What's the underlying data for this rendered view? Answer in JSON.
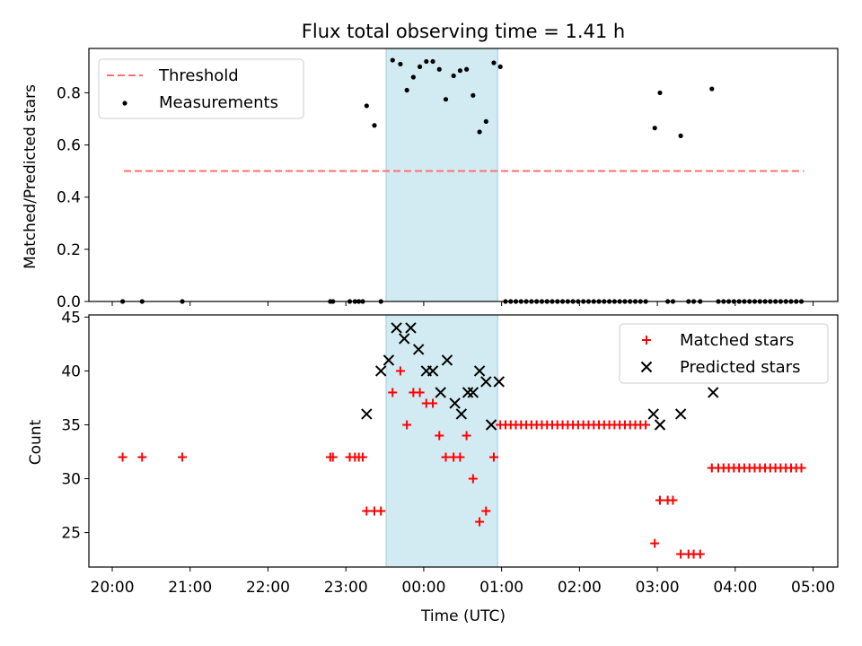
{
  "chart_data": [
    {
      "type": "scatter",
      "title": "Flux total observing time = 1.41 h",
      "xlabel": "",
      "ylabel": "Matched/Predicted stars",
      "xlim": [
        "19:42",
        "05:19"
      ],
      "ylim": [
        0,
        0.97
      ],
      "yticks": [
        0.0,
        0.2,
        0.4,
        0.6,
        0.8
      ],
      "ytick_labels": [
        "0.0",
        "0.2",
        "0.4",
        "0.6",
        "0.8"
      ],
      "shaded_interval": {
        "start": "23:31",
        "end": "00:57",
        "color": "#add8e6"
      },
      "legend": {
        "position": "top-left",
        "entries": [
          "Threshold",
          "Measurements"
        ]
      },
      "series": [
        {
          "name": "Threshold",
          "kind": "line",
          "color": "#ff6f6f",
          "style": "dashed",
          "points": [
            {
              "x": "20:09",
              "y": 0.5
            },
            {
              "x": "04:53",
              "y": 0.5
            }
          ]
        },
        {
          "name": "Measurements",
          "kind": "scatter",
          "color": "#000000",
          "points": [
            {
              "x": "20:08",
              "y": 0
            },
            {
              "x": "20:23",
              "y": 0
            },
            {
              "x": "20:54",
              "y": 0
            },
            {
              "x": "22:48",
              "y": 0
            },
            {
              "x": "22:50",
              "y": 0
            },
            {
              "x": "23:03",
              "y": 0
            },
            {
              "x": "23:07",
              "y": 0
            },
            {
              "x": "23:10",
              "y": 0
            },
            {
              "x": "23:13",
              "y": 0
            },
            {
              "x": "23:16",
              "y": 0.75
            },
            {
              "x": "23:22",
              "y": 0.675
            },
            {
              "x": "23:27",
              "y": 0
            },
            {
              "x": "23:36",
              "y": 0.925
            },
            {
              "x": "23:42",
              "y": 0.91
            },
            {
              "x": "23:47",
              "y": 0.81
            },
            {
              "x": "23:52",
              "y": 0.86
            },
            {
              "x": "23:57",
              "y": 0.9
            },
            {
              "x": "00:02",
              "y": 0.92
            },
            {
              "x": "00:07",
              "y": 0.92
            },
            {
              "x": "00:12",
              "y": 0.89
            },
            {
              "x": "00:17",
              "y": 0.775
            },
            {
              "x": "00:23",
              "y": 0.865
            },
            {
              "x": "00:28",
              "y": 0.885
            },
            {
              "x": "00:33",
              "y": 0.89
            },
            {
              "x": "00:38",
              "y": 0.79
            },
            {
              "x": "00:43",
              "y": 0.65
            },
            {
              "x": "00:48",
              "y": 0.69
            },
            {
              "x": "00:54",
              "y": 0.915
            },
            {
              "x": "00:59",
              "y": 0.9
            },
            {
              "x": "01:03",
              "y": 0
            },
            {
              "x": "01:07",
              "y": 0
            },
            {
              "x": "01:11",
              "y": 0
            },
            {
              "x": "01:15",
              "y": 0
            },
            {
              "x": "01:19",
              "y": 0
            },
            {
              "x": "01:23",
              "y": 0
            },
            {
              "x": "01:27",
              "y": 0
            },
            {
              "x": "01:31",
              "y": 0
            },
            {
              "x": "01:35",
              "y": 0
            },
            {
              "x": "01:39",
              "y": 0
            },
            {
              "x": "01:43",
              "y": 0
            },
            {
              "x": "01:47",
              "y": 0
            },
            {
              "x": "01:51",
              "y": 0
            },
            {
              "x": "01:55",
              "y": 0
            },
            {
              "x": "01:59",
              "y": 0
            },
            {
              "x": "02:03",
              "y": 0
            },
            {
              "x": "02:07",
              "y": 0
            },
            {
              "x": "02:11",
              "y": 0
            },
            {
              "x": "02:15",
              "y": 0
            },
            {
              "x": "02:19",
              "y": 0
            },
            {
              "x": "02:23",
              "y": 0
            },
            {
              "x": "02:27",
              "y": 0
            },
            {
              "x": "02:31",
              "y": 0
            },
            {
              "x": "02:35",
              "y": 0
            },
            {
              "x": "02:39",
              "y": 0
            },
            {
              "x": "02:43",
              "y": 0
            },
            {
              "x": "02:47",
              "y": 0
            },
            {
              "x": "02:51",
              "y": 0
            },
            {
              "x": "02:58",
              "y": 0.665
            },
            {
              "x": "03:02",
              "y": 0.8
            },
            {
              "x": "03:08",
              "y": 0
            },
            {
              "x": "03:12",
              "y": 0
            },
            {
              "x": "03:18",
              "y": 0.635
            },
            {
              "x": "03:24",
              "y": 0
            },
            {
              "x": "03:28",
              "y": 0
            },
            {
              "x": "03:33",
              "y": 0
            },
            {
              "x": "03:42",
              "y": 0.815
            },
            {
              "x": "03:47",
              "y": 0
            },
            {
              "x": "03:51",
              "y": 0
            },
            {
              "x": "03:55",
              "y": 0
            },
            {
              "x": "03:59",
              "y": 0
            },
            {
              "x": "04:03",
              "y": 0
            },
            {
              "x": "04:07",
              "y": 0
            },
            {
              "x": "04:11",
              "y": 0
            },
            {
              "x": "04:15",
              "y": 0
            },
            {
              "x": "04:19",
              "y": 0
            },
            {
              "x": "04:23",
              "y": 0
            },
            {
              "x": "04:27",
              "y": 0
            },
            {
              "x": "04:31",
              "y": 0
            },
            {
              "x": "04:35",
              "y": 0
            },
            {
              "x": "04:39",
              "y": 0
            },
            {
              "x": "04:43",
              "y": 0
            },
            {
              "x": "04:47",
              "y": 0
            },
            {
              "x": "04:51",
              "y": 0
            }
          ]
        }
      ]
    },
    {
      "type": "scatter",
      "title": "",
      "xlabel": "Time (UTC)",
      "ylabel": "Count",
      "xlim": [
        "19:42",
        "05:19"
      ],
      "ylim": [
        21.8,
        45.2
      ],
      "yticks": [
        25,
        30,
        35,
        40,
        45
      ],
      "ytick_labels": [
        "25",
        "30",
        "35",
        "40",
        "45"
      ],
      "xticks": [
        "20:00",
        "21:00",
        "22:00",
        "23:00",
        "00:00",
        "01:00",
        "02:00",
        "03:00",
        "04:00",
        "05:00"
      ],
      "shaded_interval": {
        "start": "23:31",
        "end": "00:57",
        "color": "#add8e6"
      },
      "legend": {
        "position": "top-right",
        "entries": [
          "Matched stars",
          "Predicted stars"
        ]
      },
      "series": [
        {
          "name": "Matched stars",
          "kind": "scatter",
          "marker": "+",
          "color": "#ff0000",
          "points": [
            {
              "x": "20:08",
              "y": 32
            },
            {
              "x": "20:23",
              "y": 32
            },
            {
              "x": "20:54",
              "y": 32
            },
            {
              "x": "22:48",
              "y": 32
            },
            {
              "x": "22:50",
              "y": 32
            },
            {
              "x": "23:03",
              "y": 32
            },
            {
              "x": "23:07",
              "y": 32
            },
            {
              "x": "23:10",
              "y": 32
            },
            {
              "x": "23:13",
              "y": 32
            },
            {
              "x": "23:16",
              "y": 27
            },
            {
              "x": "23:22",
              "y": 27
            },
            {
              "x": "23:27",
              "y": 27
            },
            {
              "x": "23:36",
              "y": 38
            },
            {
              "x": "23:42",
              "y": 40
            },
            {
              "x": "23:47",
              "y": 35
            },
            {
              "x": "23:52",
              "y": 38
            },
            {
              "x": "23:57",
              "y": 38
            },
            {
              "x": "00:02",
              "y": 37
            },
            {
              "x": "00:07",
              "y": 37
            },
            {
              "x": "00:12",
              "y": 34
            },
            {
              "x": "00:17",
              "y": 32
            },
            {
              "x": "00:23",
              "y": 32
            },
            {
              "x": "00:28",
              "y": 32
            },
            {
              "x": "00:33",
              "y": 34
            },
            {
              "x": "00:38",
              "y": 30
            },
            {
              "x": "00:43",
              "y": 26
            },
            {
              "x": "00:48",
              "y": 27
            },
            {
              "x": "00:54",
              "y": 32
            },
            {
              "x": "00:59",
              "y": 35
            },
            {
              "x": "01:03",
              "y": 35
            },
            {
              "x": "01:07",
              "y": 35
            },
            {
              "x": "01:11",
              "y": 35
            },
            {
              "x": "01:15",
              "y": 35
            },
            {
              "x": "01:19",
              "y": 35
            },
            {
              "x": "01:23",
              "y": 35
            },
            {
              "x": "01:27",
              "y": 35
            },
            {
              "x": "01:31",
              "y": 35
            },
            {
              "x": "01:35",
              "y": 35
            },
            {
              "x": "01:39",
              "y": 35
            },
            {
              "x": "01:43",
              "y": 35
            },
            {
              "x": "01:47",
              "y": 35
            },
            {
              "x": "01:51",
              "y": 35
            },
            {
              "x": "01:55",
              "y": 35
            },
            {
              "x": "01:59",
              "y": 35
            },
            {
              "x": "02:03",
              "y": 35
            },
            {
              "x": "02:07",
              "y": 35
            },
            {
              "x": "02:11",
              "y": 35
            },
            {
              "x": "02:15",
              "y": 35
            },
            {
              "x": "02:19",
              "y": 35
            },
            {
              "x": "02:23",
              "y": 35
            },
            {
              "x": "02:27",
              "y": 35
            },
            {
              "x": "02:31",
              "y": 35
            },
            {
              "x": "02:35",
              "y": 35
            },
            {
              "x": "02:39",
              "y": 35
            },
            {
              "x": "02:43",
              "y": 35
            },
            {
              "x": "02:47",
              "y": 35
            },
            {
              "x": "02:51",
              "y": 35
            },
            {
              "x": "02:58",
              "y": 24
            },
            {
              "x": "03:02",
              "y": 28
            },
            {
              "x": "03:08",
              "y": 28
            },
            {
              "x": "03:12",
              "y": 28
            },
            {
              "x": "03:18",
              "y": 23
            },
            {
              "x": "03:24",
              "y": 23
            },
            {
              "x": "03:28",
              "y": 23
            },
            {
              "x": "03:33",
              "y": 23
            },
            {
              "x": "03:42",
              "y": 31
            },
            {
              "x": "03:47",
              "y": 31
            },
            {
              "x": "03:51",
              "y": 31
            },
            {
              "x": "03:55",
              "y": 31
            },
            {
              "x": "03:59",
              "y": 31
            },
            {
              "x": "04:03",
              "y": 31
            },
            {
              "x": "04:07",
              "y": 31
            },
            {
              "x": "04:11",
              "y": 31
            },
            {
              "x": "04:15",
              "y": 31
            },
            {
              "x": "04:19",
              "y": 31
            },
            {
              "x": "04:23",
              "y": 31
            },
            {
              "x": "04:27",
              "y": 31
            },
            {
              "x": "04:31",
              "y": 31
            },
            {
              "x": "04:35",
              "y": 31
            },
            {
              "x": "04:39",
              "y": 31
            },
            {
              "x": "04:43",
              "y": 31
            },
            {
              "x": "04:47",
              "y": 31
            },
            {
              "x": "04:51",
              "y": 31
            }
          ]
        },
        {
          "name": "Predicted stars",
          "kind": "scatter",
          "marker": "x",
          "color": "#000000",
          "points": [
            {
              "x": "23:16",
              "y": 36
            },
            {
              "x": "23:27",
              "y": 40
            },
            {
              "x": "23:33",
              "y": 41
            },
            {
              "x": "23:39",
              "y": 44
            },
            {
              "x": "23:45",
              "y": 43
            },
            {
              "x": "23:50",
              "y": 44
            },
            {
              "x": "23:56",
              "y": 42
            },
            {
              "x": "00:02",
              "y": 40
            },
            {
              "x": "00:07",
              "y": 40
            },
            {
              "x": "00:13",
              "y": 38
            },
            {
              "x": "00:18",
              "y": 41
            },
            {
              "x": "00:24",
              "y": 37
            },
            {
              "x": "00:29",
              "y": 36
            },
            {
              "x": "00:34",
              "y": 38
            },
            {
              "x": "00:38",
              "y": 38
            },
            {
              "x": "00:43",
              "y": 40
            },
            {
              "x": "00:48",
              "y": 39
            },
            {
              "x": "00:52",
              "y": 35
            },
            {
              "x": "00:58",
              "y": 39
            },
            {
              "x": "02:57",
              "y": 36
            },
            {
              "x": "03:02",
              "y": 35
            },
            {
              "x": "03:18",
              "y": 36
            },
            {
              "x": "03:43",
              "y": 38
            }
          ]
        }
      ]
    }
  ]
}
